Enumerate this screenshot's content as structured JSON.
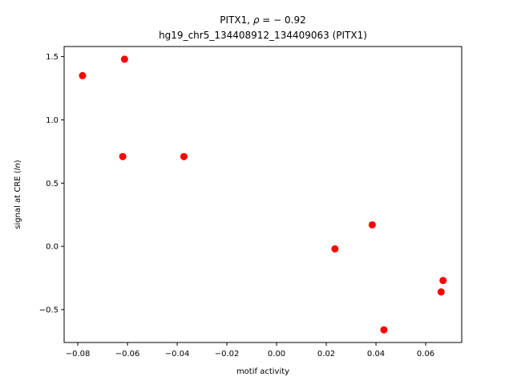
{
  "chart_data": {
    "type": "scatter",
    "title_line1_prefix": "PITX1, ",
    "title_rho": "ρ",
    "title_line1_suffix": " = − 0.92",
    "title_line2": "hg19_chr5_134408912_134409063 (PITX1)",
    "xlabel": "motif activity",
    "ylabel_prefix": "signal at CRE (",
    "ylabel_italic": "ln",
    "ylabel_suffix": ")",
    "xlim": [
      -0.0855,
      0.0745
    ],
    "ylim": [
      -0.76,
      1.58
    ],
    "xticks": [
      -0.08,
      -0.06,
      -0.04,
      -0.02,
      0.0,
      0.02,
      0.04,
      0.06
    ],
    "xtick_labels": [
      "−0.08",
      "−0.06",
      "−0.04",
      "−0.02",
      "0.00",
      "0.02",
      "0.04",
      "0.06"
    ],
    "yticks": [
      -0.5,
      0.0,
      0.5,
      1.0,
      1.5
    ],
    "ytick_labels": [
      "−0.5",
      "0.0",
      "0.5",
      "1.0",
      "1.5"
    ],
    "grid": false,
    "marker_color": "#ff0000",
    "points": [
      {
        "x": -0.0781,
        "y": 1.35
      },
      {
        "x": -0.0612,
        "y": 1.48
      },
      {
        "x": -0.0619,
        "y": 0.71
      },
      {
        "x": -0.0373,
        "y": 0.71
      },
      {
        "x": 0.0235,
        "y": -0.02
      },
      {
        "x": 0.0385,
        "y": 0.17
      },
      {
        "x": 0.0432,
        "y": -0.66
      },
      {
        "x": 0.0662,
        "y": -0.36
      },
      {
        "x": 0.067,
        "y": -0.27
      }
    ]
  }
}
